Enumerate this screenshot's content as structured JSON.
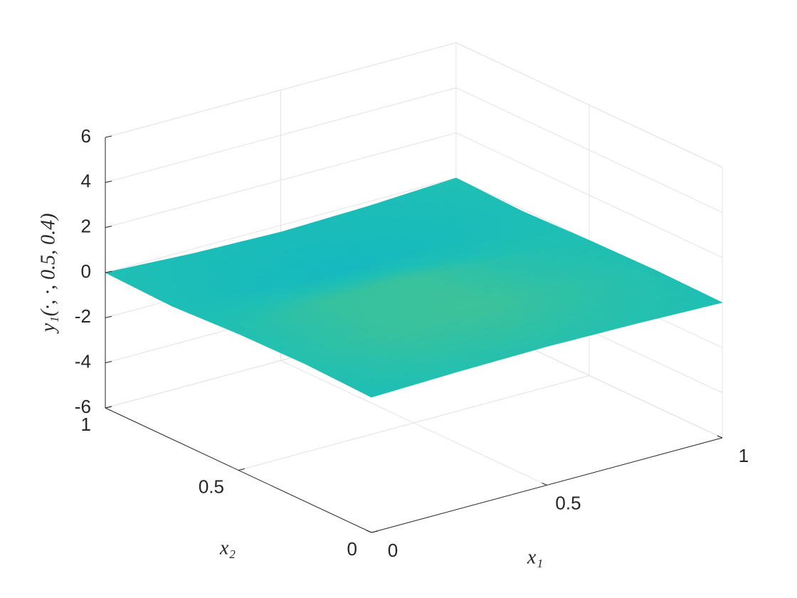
{
  "chart_data": {
    "type": "surface",
    "xlabel": "x₁",
    "ylabel": "x₂",
    "zlabel": "y₁(·, ·, 0.5, 0.4)",
    "x": [
      0,
      0.25,
      0.5,
      0.75,
      1
    ],
    "y": [
      0,
      0.25,
      0.5,
      0.75,
      1
    ],
    "z": [
      [
        0,
        0.1,
        0.15,
        0.1,
        0
      ],
      [
        0.1,
        0.5,
        0.6,
        0.3,
        0.05
      ],
      [
        0.05,
        0.45,
        0.5,
        0.15,
        0
      ],
      [
        -0.1,
        -0.4,
        -0.6,
        -0.4,
        -0.1
      ],
      [
        0,
        -0.2,
        -0.3,
        -0.2,
        0
      ]
    ],
    "xlim": [
      0,
      1
    ],
    "ylim": [
      0,
      1
    ],
    "zlim": [
      -6,
      6
    ],
    "xticks": [
      0,
      0.5,
      1
    ],
    "yticks": [
      0,
      0.5,
      1
    ],
    "zticks": [
      -6,
      -4,
      -2,
      0,
      2,
      4,
      6
    ],
    "grid": true,
    "colormap": [
      "#3e26a8",
      "#4443e0",
      "#2c7ff0",
      "#06b0d0",
      "#1fbfb4",
      "#6cc870",
      "#c8bf3c",
      "#f8c832",
      "#f9fb0e"
    ]
  }
}
